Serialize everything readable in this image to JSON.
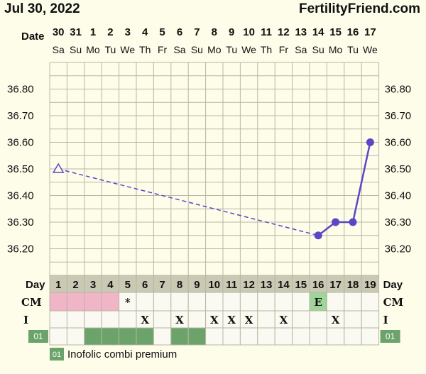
{
  "header": {
    "date": "Jul 30, 2022",
    "site": "FertilityFriend.com"
  },
  "labels": {
    "date_row": "Date",
    "day_row": "Day",
    "cm_row": "CM",
    "i_row": "I",
    "med_code": "01",
    "legend_text": "Inofolic combi premium"
  },
  "colors": {
    "background": "#fdfdea",
    "grid": "#b7b7a2",
    "line": "#5a47c6",
    "pink": "#f1b5c8",
    "green": "#6ba36b",
    "cm_egg": "#9fd49a"
  },
  "chart_data": {
    "type": "line",
    "x": [
      "30",
      "31",
      "1",
      "2",
      "3",
      "4",
      "5",
      "6",
      "7",
      "8",
      "9",
      "10",
      "11",
      "12",
      "13",
      "14",
      "15",
      "16",
      "17"
    ],
    "weekdays": [
      "Sa",
      "Su",
      "Mo",
      "Tu",
      "We",
      "Th",
      "Fr",
      "Sa",
      "Su",
      "Mo",
      "Tu",
      "We",
      "Th",
      "Fr",
      "Sa",
      "Su",
      "Mo",
      "Tu",
      "We"
    ],
    "cycle_days": [
      "1",
      "2",
      "3",
      "4",
      "5",
      "6",
      "7",
      "8",
      "9",
      "10",
      "11",
      "12",
      "13",
      "14",
      "15",
      "16",
      "17",
      "18",
      "19"
    ],
    "ylim": [
      36.1,
      36.9
    ],
    "yticks": [
      "36.80",
      "36.70",
      "36.60",
      "36.50",
      "36.40",
      "36.30",
      "36.20"
    ],
    "series": [
      {
        "values": [
          36.5,
          null,
          null,
          null,
          null,
          null,
          null,
          null,
          null,
          null,
          null,
          null,
          null,
          null,
          null,
          36.25,
          36.3,
          36.3,
          36.6
        ]
      }
    ],
    "open_markers": [
      0
    ],
    "dashed_segments": [
      [
        0,
        15
      ]
    ],
    "grid": true
  },
  "rows": {
    "cm": [
      "",
      "",
      "",
      "",
      "*",
      "",
      "",
      "",
      "",
      "",
      "",
      "",
      "",
      "",
      "",
      "E",
      "",
      "",
      ""
    ],
    "cm_colors": [
      "pink",
      "pink",
      "pink",
      "pink",
      "",
      "",
      "",
      "",
      "",
      "",
      "",
      "",
      "",
      "",
      "",
      "egg",
      "",
      "",
      ""
    ],
    "intercourse": [
      "",
      "",
      "",
      "",
      "",
      "X",
      "",
      "X",
      "",
      "X",
      "X",
      "X",
      "",
      "X",
      "",
      "",
      "X",
      "",
      ""
    ],
    "medication": [
      false,
      false,
      true,
      true,
      true,
      true,
      false,
      true,
      true,
      false,
      false,
      false,
      false,
      false,
      false,
      false,
      false,
      false,
      false
    ]
  }
}
